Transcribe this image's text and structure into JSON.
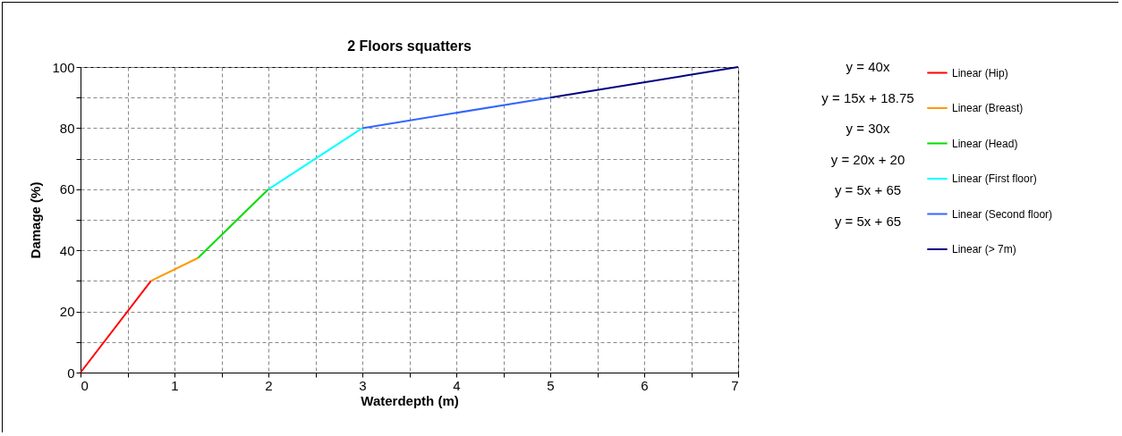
{
  "chart_data": {
    "type": "line",
    "title": "2 Floors squatters",
    "xlabel": "Waterdepth (m)",
    "ylabel": "Damage (%)",
    "xlim": [
      0,
      7
    ],
    "ylim": [
      0,
      100
    ],
    "xticks": [
      0,
      {
        "value": 0.5,
        "label": null
      },
      1,
      {
        "value": 1.5,
        "label": null
      },
      2,
      {
        "value": 2.5,
        "label": null
      },
      3,
      {
        "value": 3.5,
        "label": null
      },
      4,
      {
        "value": 4.5,
        "label": null
      },
      5,
      {
        "value": 5.5,
        "label": null
      },
      6,
      {
        "value": 6.5,
        "label": null
      },
      7
    ],
    "yticks": [
      0,
      {
        "value": 10,
        "label": null
      },
      20,
      {
        "value": 30,
        "label": null
      },
      40,
      {
        "value": 50,
        "label": null
      },
      60,
      {
        "value": 70,
        "label": null
      },
      80,
      {
        "value": 90,
        "label": null
      },
      100
    ],
    "grid": true,
    "legend": "right",
    "marker": "none",
    "line_style": "solid",
    "annotations": [
      "y = 40x",
      "y = 15x + 18.75",
      "y = 30x",
      "y = 20x + 20",
      "y = 5x + 65",
      "y = 5x + 65"
    ],
    "series": [
      {
        "name": "Linear (Hip)",
        "color": "#ff0000",
        "x": [
          0,
          0.75
        ],
        "values": [
          0,
          30
        ]
      },
      {
        "name": "Linear (Breast)",
        "color": "#ff9900",
        "x": [
          0.75,
          1.25
        ],
        "values": [
          30,
          37.5
        ]
      },
      {
        "name": "Linear (Head)",
        "color": "#00dd00",
        "x": [
          1.25,
          2
        ],
        "values": [
          37.5,
          60
        ]
      },
      {
        "name": "Linear (First floor)",
        "color": "#00ffff",
        "x": [
          2,
          3
        ],
        "values": [
          60,
          80
        ]
      },
      {
        "name": "Linear (Second floor)",
        "color": "#3366ff",
        "x": [
          3,
          5
        ],
        "values": [
          80,
          90
        ]
      },
      {
        "name": "Linear (> 7m)",
        "color": "#000080",
        "x": [
          5,
          7
        ],
        "values": [
          90,
          100
        ]
      }
    ]
  }
}
